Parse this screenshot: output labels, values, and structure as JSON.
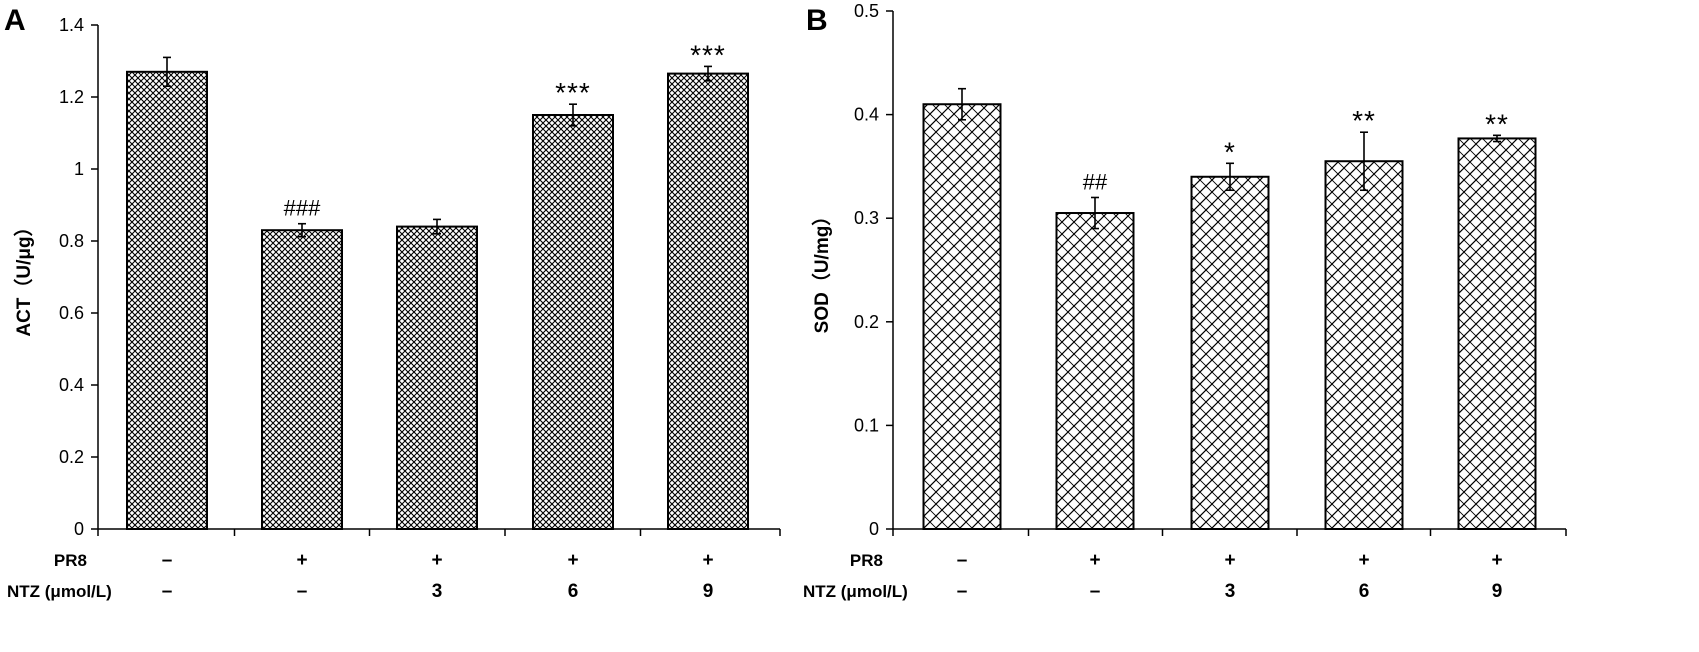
{
  "chart_data": [
    {
      "panel_label": "A",
      "type": "bar",
      "ylabel": "ACT（U/μg）",
      "ylim": [
        0,
        1.4
      ],
      "yticks": [
        "0",
        "0.2",
        "0.4",
        "0.6",
        "0.8",
        "1",
        "1.2",
        "1.4"
      ],
      "categories": [
        {
          "PR8": "–",
          "NTZ": "–"
        },
        {
          "PR8": "+",
          "NTZ": "–"
        },
        {
          "PR8": "+",
          "NTZ": "3"
        },
        {
          "PR8": "+",
          "NTZ": "6"
        },
        {
          "PR8": "+",
          "NTZ": "9"
        }
      ],
      "row_labels": {
        "PR8": "PR8",
        "NTZ": "NTZ (μmol/L)"
      },
      "values": [
        1.27,
        0.83,
        0.84,
        1.15,
        1.265
      ],
      "errors": [
        0.04,
        0.018,
        0.02,
        0.03,
        0.02
      ],
      "annotations": [
        "",
        "###",
        "",
        "***",
        "***"
      ],
      "pattern": "crosshatch"
    },
    {
      "panel_label": "B",
      "type": "bar",
      "ylabel": "SOD（U/mg）",
      "ylim": [
        0,
        0.5
      ],
      "yticks": [
        "0",
        "0.1",
        "0.2",
        "0.3",
        "0.4",
        "0.5"
      ],
      "categories": [
        {
          "PR8": "–",
          "NTZ": "–"
        },
        {
          "PR8": "+",
          "NTZ": "–"
        },
        {
          "PR8": "+",
          "NTZ": "3"
        },
        {
          "PR8": "+",
          "NTZ": "6"
        },
        {
          "PR8": "+",
          "NTZ": "9"
        }
      ],
      "row_labels": {
        "PR8": "PR8",
        "NTZ": "NTZ (μmol/L)"
      },
      "values": [
        0.41,
        0.305,
        0.34,
        0.355,
        0.377
      ],
      "errors": [
        0.015,
        0.015,
        0.013,
        0.028,
        0.003
      ],
      "annotations": [
        "",
        "##",
        "*",
        "**",
        "**"
      ],
      "pattern": "diagonal-grid"
    }
  ]
}
